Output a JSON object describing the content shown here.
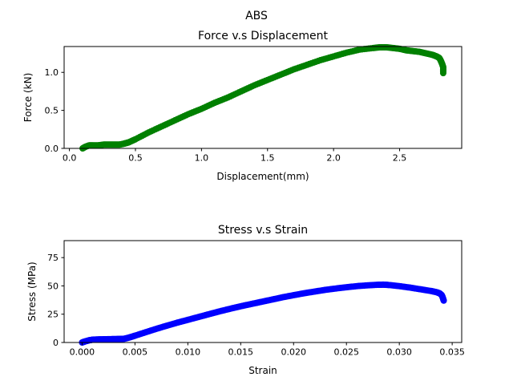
{
  "figure": {
    "suptitle": "ABS"
  },
  "chart_data": [
    {
      "type": "scatter",
      "title": "Force v.s Displacement",
      "xlabel": "Displacement(mm)",
      "ylabel": "Force (kN)",
      "xlim": [
        -0.04,
        2.97
      ],
      "ylim": [
        0,
        1.34
      ],
      "xticks": [
        0.0,
        0.5,
        1.0,
        1.5,
        2.0,
        2.5
      ],
      "xtick_labels": [
        "0.0",
        "0.5",
        "1.0",
        "1.5",
        "2.0",
        "2.5"
      ],
      "yticks": [
        0.0,
        0.5,
        1.0
      ],
      "ytick_labels": [
        "0.0",
        "0.5",
        "1.0"
      ],
      "grid": false,
      "series": [
        {
          "color": "#008000",
          "marker": "circle",
          "x": [
            0.1,
            0.12,
            0.15,
            0.18,
            0.22,
            0.26,
            0.3,
            0.34,
            0.38,
            0.41,
            0.43,
            0.45,
            0.5,
            0.6,
            0.7,
            0.8,
            0.9,
            1.0,
            1.1,
            1.2,
            1.3,
            1.4,
            1.5,
            1.6,
            1.7,
            1.8,
            1.9,
            2.0,
            2.1,
            2.2,
            2.3,
            2.35,
            2.4,
            2.45,
            2.5,
            2.55,
            2.6,
            2.65,
            2.7,
            2.75,
            2.78,
            2.8,
            2.81,
            2.82,
            2.83,
            2.83
          ],
          "y": [
            0.0,
            0.02,
            0.04,
            0.04,
            0.04,
            0.05,
            0.05,
            0.05,
            0.05,
            0.06,
            0.07,
            0.08,
            0.12,
            0.21,
            0.29,
            0.37,
            0.45,
            0.52,
            0.6,
            0.67,
            0.75,
            0.83,
            0.9,
            0.97,
            1.04,
            1.1,
            1.16,
            1.21,
            1.26,
            1.3,
            1.32,
            1.33,
            1.33,
            1.32,
            1.31,
            1.29,
            1.28,
            1.27,
            1.25,
            1.23,
            1.21,
            1.19,
            1.16,
            1.12,
            1.07,
            0.99
          ]
        }
      ]
    },
    {
      "type": "scatter",
      "title": "Stress v.s Strain",
      "xlabel": "Strain",
      "ylabel": "Stress (MPa)",
      "xlim": [
        -0.0017,
        0.0359
      ],
      "ylim": [
        0,
        90
      ],
      "xticks": [
        0.0,
        0.005,
        0.01,
        0.015,
        0.02,
        0.025,
        0.03,
        0.035
      ],
      "xtick_labels": [
        "0.000",
        "0.005",
        "0.010",
        "0.015",
        "0.020",
        "0.025",
        "0.030",
        "0.035"
      ],
      "yticks": [
        0,
        25,
        50,
        75
      ],
      "ytick_labels": [
        "0",
        "25",
        "50",
        "75"
      ],
      "grid": false,
      "series": [
        {
          "color": "#0000ff",
          "marker": "circle",
          "x": [
            0.0,
            0.0003,
            0.0007,
            0.001,
            0.0015,
            0.002,
            0.0025,
            0.003,
            0.0035,
            0.004,
            0.0045,
            0.005,
            0.006,
            0.007,
            0.008,
            0.009,
            0.01,
            0.011,
            0.012,
            0.013,
            0.014,
            0.015,
            0.016,
            0.017,
            0.018,
            0.019,
            0.02,
            0.021,
            0.022,
            0.023,
            0.024,
            0.025,
            0.026,
            0.027,
            0.028,
            0.0285,
            0.029,
            0.03,
            0.031,
            0.032,
            0.033,
            0.0335,
            0.0338,
            0.034,
            0.0341,
            0.0342
          ],
          "y": [
            0.0,
            1.0,
            2.0,
            2.5,
            2.7,
            2.8,
            2.9,
            3.0,
            3.1,
            3.3,
            4.5,
            6.0,
            9.0,
            12.0,
            14.8,
            17.5,
            20.0,
            22.5,
            25.0,
            27.5,
            29.8,
            32.0,
            34.0,
            36.0,
            38.0,
            40.0,
            41.8,
            43.5,
            45.0,
            46.5,
            47.7,
            48.8,
            49.8,
            50.5,
            51.0,
            51.1,
            50.8,
            49.8,
            48.5,
            47.0,
            45.5,
            44.5,
            43.5,
            42.0,
            40.0,
            37.0
          ]
        }
      ]
    }
  ]
}
